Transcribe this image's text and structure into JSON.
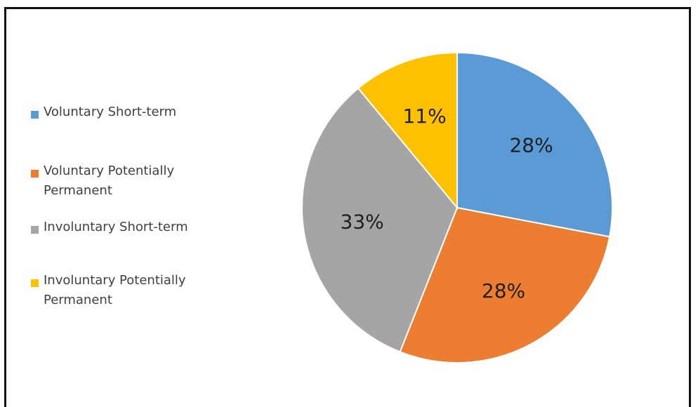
{
  "chart_data": {
    "type": "pie",
    "categories": [
      "Voluntary Short-term",
      "Voluntary Potentially Permanent",
      "Involuntary Short-term",
      "Involuntary Potentially Permanent"
    ],
    "values": [
      28,
      28,
      33,
      11
    ],
    "data_labels": [
      "28%",
      "28%",
      "33%",
      "11%"
    ],
    "colors": [
      "#5B9BD5",
      "#ED7D31",
      "#A5A5A5",
      "#FFC000"
    ],
    "start": "12 o'clock, clockwise",
    "legend_position": "left"
  },
  "legend": {
    "items": [
      {
        "label": "Voluntary Short-term",
        "color": "#5B9BD5"
      },
      {
        "label": "Voluntary Potentially Permanent",
        "color": "#ED7D31"
      },
      {
        "label": "Involuntary Short-term",
        "color": "#A5A5A5"
      },
      {
        "label": "Involuntary Potentially Permanent",
        "color": "#FFC000"
      }
    ]
  }
}
